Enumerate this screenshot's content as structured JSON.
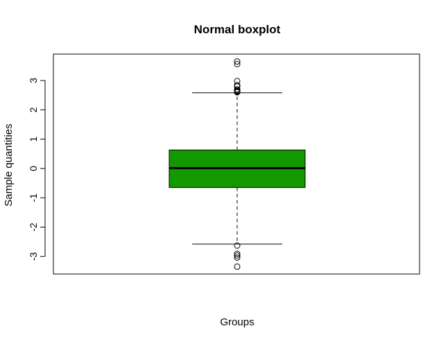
{
  "chart_data": {
    "type": "boxplot",
    "title": "Normal boxplot",
    "xlabel": "Groups",
    "ylabel": "Sample quantities",
    "ylim": [
      -3.6,
      3.9
    ],
    "y_ticks": [
      -3,
      -2,
      -1,
      0,
      1,
      2,
      3
    ],
    "y_tick_labels": [
      "-3",
      "-2",
      "-1",
      "0",
      "1",
      "2",
      "3"
    ],
    "box_color": "#139900",
    "whisker_style": "dashed",
    "boxes": [
      {
        "q1": -0.65,
        "median": 0.01,
        "q3": 0.63,
        "whisker_low": -2.58,
        "whisker_high": 2.58,
        "outliers": [
          3.65,
          3.56,
          2.98,
          2.84,
          2.8,
          2.7,
          2.66,
          2.64,
          2.62,
          2.6,
          -2.63,
          -2.91,
          -2.97,
          -3.04,
          -3.35
        ]
      }
    ]
  }
}
